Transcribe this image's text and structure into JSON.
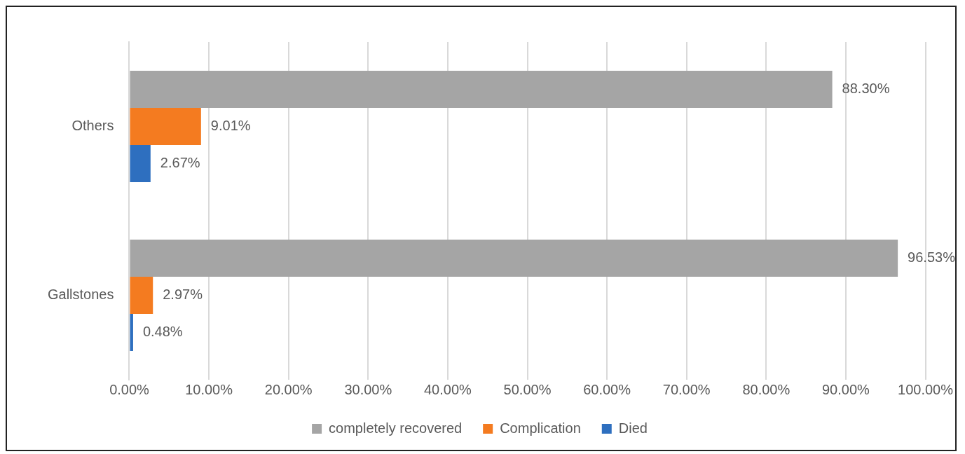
{
  "chart_data": {
    "type": "bar",
    "orientation": "horizontal",
    "categories": [
      "Others",
      "Gallstones"
    ],
    "series": [
      {
        "name": "completely recovered",
        "color": "#a5a5a5",
        "values": [
          88.3,
          96.53
        ],
        "value_labels": [
          "88.30%",
          "96.53%"
        ]
      },
      {
        "name": "Complication",
        "color": "#f47b20",
        "values": [
          9.01,
          2.97
        ],
        "value_labels": [
          "9.01%",
          "2.97%"
        ]
      },
      {
        "name": "Died",
        "color": "#2e6fbf",
        "values": [
          2.67,
          0.48
        ],
        "value_labels": [
          "2.67%",
          "0.48%"
        ]
      }
    ],
    "xlim": [
      0,
      100
    ],
    "xticks": [
      {
        "value": 0,
        "label": "0.00%"
      },
      {
        "value": 10,
        "label": "10.00%"
      },
      {
        "value": 20,
        "label": "20.00%"
      },
      {
        "value": 30,
        "label": "30.00%"
      },
      {
        "value": 40,
        "label": "40.00%"
      },
      {
        "value": 50,
        "label": "50.00%"
      },
      {
        "value": 60,
        "label": "60.00%"
      },
      {
        "value": 70,
        "label": "70.00%"
      },
      {
        "value": 80,
        "label": "80.00%"
      },
      {
        "value": 90,
        "label": "90.00%"
      },
      {
        "value": 100,
        "label": "100.00%"
      }
    ],
    "grid": "x",
    "legend": "bottom"
  }
}
